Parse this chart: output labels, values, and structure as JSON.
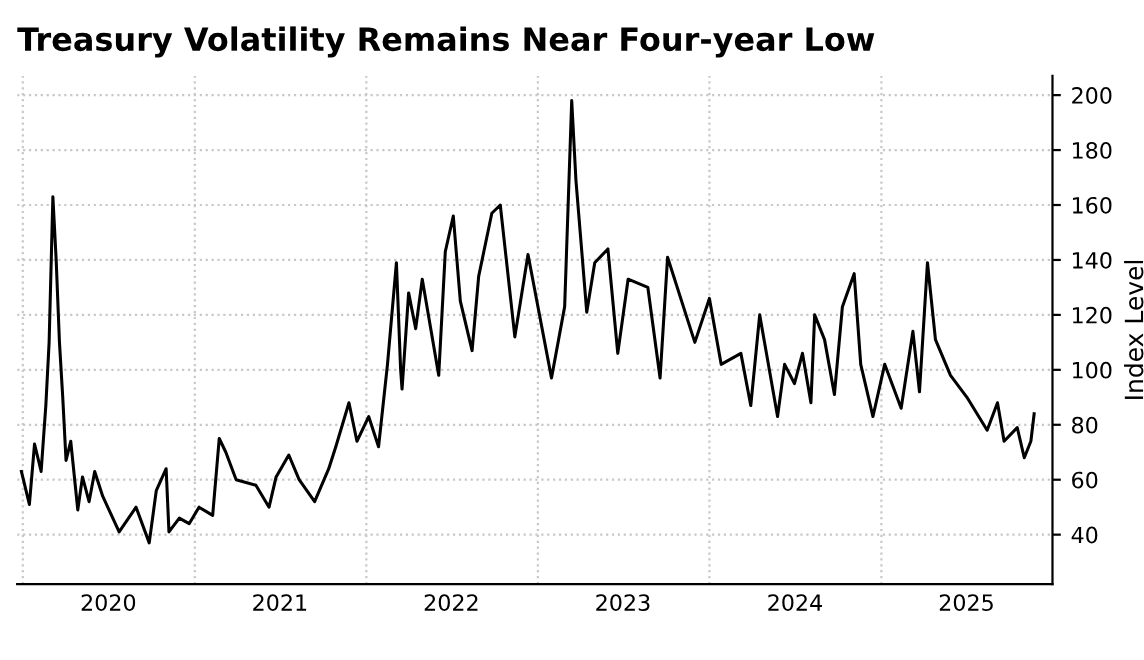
{
  "chart_data": {
    "type": "line",
    "title": "Treasury Volatility Remains Near Four-year Low",
    "ylabel": "Index Level",
    "x": [
      "2019-12-29",
      "2020-01-15",
      "2020-01-26",
      "2020-02-09",
      "2020-02-19",
      "2020-02-26",
      "2020-03-05",
      "2020-03-12",
      "2020-03-19",
      "2020-03-26",
      "2020-04-02",
      "2020-04-12",
      "2020-04-27",
      "2020-05-07",
      "2020-05-21",
      "2020-06-02",
      "2020-06-19",
      "2020-07-24",
      "2020-08-29",
      "2020-09-26",
      "2020-10-11",
      "2020-11-01",
      "2020-11-07",
      "2020-11-29",
      "2020-12-20",
      "2021-01-10",
      "2021-02-08",
      "2021-02-22",
      "2021-03-08",
      "2021-03-30",
      "2021-05-11",
      "2021-06-08",
      "2021-06-23",
      "2021-07-20",
      "2021-08-11",
      "2021-09-13",
      "2021-10-13",
      "2021-10-28",
      "2021-11-25",
      "2021-12-12",
      "2022-01-06",
      "2022-01-27",
      "2022-02-15",
      "2022-03-06",
      "2022-03-15",
      "2022-03-18",
      "2022-04-01",
      "2022-04-16",
      "2022-04-30",
      "2022-06-04",
      "2022-06-18",
      "2022-07-05",
      "2022-07-20",
      "2022-08-14",
      "2022-08-28",
      "2022-09-25",
      "2022-10-13",
      "2022-11-13",
      "2022-12-11",
      "2023-01-30",
      "2023-02-27",
      "2023-03-14",
      "2023-03-23",
      "2023-04-15",
      "2023-05-02",
      "2023-05-30",
      "2023-06-20",
      "2023-07-12",
      "2023-08-23",
      "2023-09-18",
      "2023-10-04",
      "2023-12-01",
      "2024-01-01",
      "2024-01-26",
      "2024-03-08",
      "2024-03-29",
      "2024-04-17",
      "2024-05-25",
      "2024-06-09",
      "2024-06-30",
      "2024-07-17",
      "2024-08-04",
      "2024-08-12",
      "2024-09-02",
      "2024-09-23",
      "2024-10-10",
      "2024-11-04",
      "2024-11-18",
      "2024-12-14",
      "2025-01-08",
      "2025-02-12",
      "2025-03-09",
      "2025-03-23",
      "2025-04-09",
      "2025-04-26",
      "2025-05-28",
      "2025-07-02",
      "2025-08-14",
      "2025-09-05",
      "2025-09-19",
      "2025-10-17",
      "2025-11-01",
      "2025-11-15",
      "2025-11-22"
    ],
    "series": [
      {
        "color": "#000000",
        "values": [
          63,
          51,
          73,
          63,
          87,
          110,
          163,
          140,
          110,
          90,
          67,
          74,
          49,
          61,
          52,
          63,
          54,
          41,
          50,
          37,
          56,
          64,
          41,
          46,
          44,
          50,
          47,
          75,
          70,
          60,
          58,
          50,
          61,
          69,
          60,
          52,
          64,
          72,
          88,
          74,
          83,
          72,
          102,
          139,
          100,
          93,
          128,
          115,
          133,
          98,
          143,
          156,
          125,
          107,
          134,
          157,
          160,
          112,
          142,
          97,
          123,
          198,
          169,
          121,
          139,
          144,
          106,
          133,
          130,
          97,
          141,
          110,
          126,
          102,
          106,
          87,
          120,
          83,
          102,
          95,
          106,
          88,
          120,
          111,
          91,
          123,
          135,
          102,
          83,
          102,
          86,
          114,
          92,
          139,
          111,
          98,
          90,
          78,
          88,
          74,
          79,
          68,
          74,
          84
        ]
      }
    ],
    "xlim": [
      "2019-12-20",
      "2025-12-31"
    ],
    "xticks": [
      {
        "value": "2020-01-01",
        "label": null
      },
      {
        "value": "2020-07-01",
        "label": "2020"
      },
      {
        "value": "2021-01-01",
        "label": null
      },
      {
        "value": "2021-07-01",
        "label": "2021"
      },
      {
        "value": "2022-01-01",
        "label": null
      },
      {
        "value": "2022-07-01",
        "label": "2022"
      },
      {
        "value": "2023-01-01",
        "label": null
      },
      {
        "value": "2023-07-01",
        "label": "2023"
      },
      {
        "value": "2024-01-01",
        "label": null
      },
      {
        "value": "2024-07-01",
        "label": "2024"
      },
      {
        "value": "2025-01-01",
        "label": null
      },
      {
        "value": "2025-07-01",
        "label": "2025"
      }
    ],
    "ylim": [
      22,
      207
    ],
    "yticks": [
      40,
      60,
      80,
      100,
      120,
      140,
      160,
      180,
      200
    ],
    "grid": true,
    "line_style": "solid",
    "marker": "none"
  }
}
